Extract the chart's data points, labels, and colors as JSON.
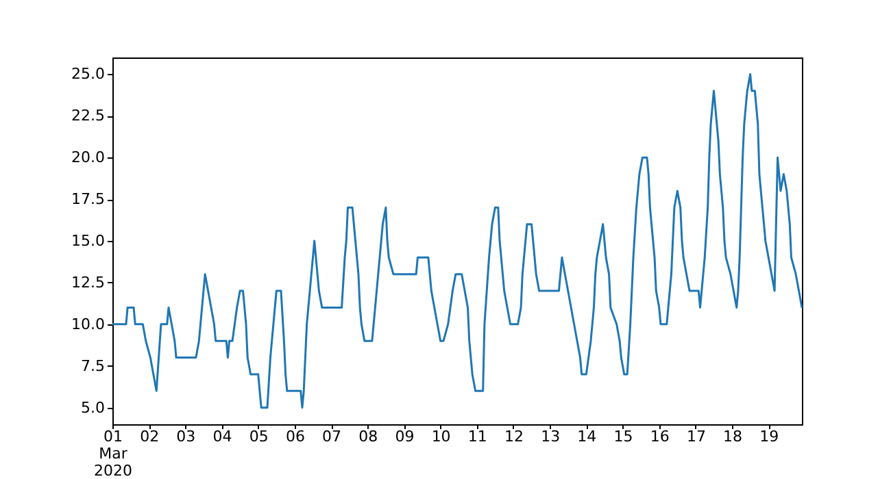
{
  "chart_data": {
    "type": "line",
    "grid": false,
    "marker": "none",
    "line_style": "solid",
    "xlim": [
      "2020-03-01T00:00",
      "2020-03-19T22:00"
    ],
    "xticks": [
      {
        "value": "2020-03-01T00:00",
        "label": "01\nMar\n2020"
      },
      {
        "value": "2020-03-02T00:00",
        "label": "02"
      },
      {
        "value": "2020-03-03T00:00",
        "label": "03"
      },
      {
        "value": "2020-03-04T00:00",
        "label": "04"
      },
      {
        "value": "2020-03-05T00:00",
        "label": "05"
      },
      {
        "value": "2020-03-06T00:00",
        "label": "06"
      },
      {
        "value": "2020-03-07T00:00",
        "label": "07"
      },
      {
        "value": "2020-03-08T00:00",
        "label": "08"
      },
      {
        "value": "2020-03-09T00:00",
        "label": "09"
      },
      {
        "value": "2020-03-10T00:00",
        "label": "10"
      },
      {
        "value": "2020-03-11T00:00",
        "label": "11"
      },
      {
        "value": "2020-03-12T00:00",
        "label": "12"
      },
      {
        "value": "2020-03-13T00:00",
        "label": "13"
      },
      {
        "value": "2020-03-14T00:00",
        "label": "14"
      },
      {
        "value": "2020-03-15T00:00",
        "label": "15"
      },
      {
        "value": "2020-03-16T00:00",
        "label": "16"
      },
      {
        "value": "2020-03-17T00:00",
        "label": "17"
      },
      {
        "value": "2020-03-18T00:00",
        "label": "18"
      },
      {
        "value": "2020-03-19T00:00",
        "label": "19"
      }
    ],
    "ylim": [
      4,
      26
    ],
    "yticks": [
      {
        "value": 5,
        "label": "5.0"
      },
      {
        "value": 7.5,
        "label": "7.5"
      },
      {
        "value": 10,
        "label": "10.0"
      },
      {
        "value": 12.5,
        "label": "12.5"
      },
      {
        "value": 15,
        "label": "15.0"
      },
      {
        "value": 17.5,
        "label": "17.5"
      },
      {
        "value": 20,
        "label": "20.0"
      },
      {
        "value": 22.5,
        "label": "22.5"
      },
      {
        "value": 25,
        "label": "25.0"
      }
    ],
    "x": [
      "2020-03-01T00:00",
      "2020-03-01T09:00",
      "2020-03-01T10:00",
      "2020-03-01T14:00",
      "2020-03-01T15:00",
      "2020-03-01T20:00",
      "2020-03-01T22:00",
      "2020-03-02T01:00",
      "2020-03-02T03:00",
      "2020-03-02T05:00",
      "2020-03-02T08:00",
      "2020-03-02T12:00",
      "2020-03-02T13:00",
      "2020-03-02T15:00",
      "2020-03-02T17:00",
      "2020-03-02T18:00",
      "2020-03-03T07:00",
      "2020-03-03T09:00",
      "2020-03-03T11:00",
      "2020-03-03T13:00",
      "2020-03-03T15:00",
      "2020-03-03T17:00",
      "2020-03-03T19:00",
      "2020-03-03T20:00",
      "2020-03-04T03:00",
      "2020-03-04T04:00",
      "2020-03-04T05:00",
      "2020-03-04T07:00",
      "2020-03-04T10:00",
      "2020-03-04T12:00",
      "2020-03-04T14:00",
      "2020-03-04T16:00",
      "2020-03-04T17:00",
      "2020-03-04T19:00",
      "2020-03-05T00:00",
      "2020-03-05T01:00",
      "2020-03-05T02:00",
      "2020-03-05T06:00",
      "2020-03-05T08:00",
      "2020-03-05T10:00",
      "2020-03-05T11:00",
      "2020-03-05T12:00",
      "2020-03-05T15:00",
      "2020-03-05T17:00",
      "2020-03-05T18:00",
      "2020-03-05T19:00",
      "2020-03-06T04:00",
      "2020-03-06T05:00",
      "2020-03-06T06:00",
      "2020-03-06T07:00",
      "2020-03-06T08:00",
      "2020-03-06T10:00",
      "2020-03-06T12:00",
      "2020-03-06T13:00",
      "2020-03-06T14:00",
      "2020-03-06T15:00",
      "2020-03-06T16:00",
      "2020-03-06T18:00",
      "2020-03-07T07:00",
      "2020-03-07T09:00",
      "2020-03-07T10:00",
      "2020-03-07T11:00",
      "2020-03-07T14:00",
      "2020-03-07T16:00",
      "2020-03-07T18:00",
      "2020-03-07T19:00",
      "2020-03-07T20:00",
      "2020-03-07T22:00",
      "2020-03-08T03:00",
      "2020-03-08T04:00",
      "2020-03-08T06:00",
      "2020-03-08T08:00",
      "2020-03-08T10:00",
      "2020-03-08T12:00",
      "2020-03-08T13:00",
      "2020-03-08T14:00",
      "2020-03-08T17:00",
      "2020-03-09T08:00",
      "2020-03-09T09:00",
      "2020-03-09T16:00",
      "2020-03-09T17:00",
      "2020-03-09T18:00",
      "2020-03-09T20:00",
      "2020-03-09T22:00",
      "2020-03-10T00:00",
      "2020-03-10T02:00",
      "2020-03-10T05:00",
      "2020-03-10T08:00",
      "2020-03-10T10:00",
      "2020-03-10T14:00",
      "2020-03-10T16:00",
      "2020-03-10T18:00",
      "2020-03-10T19:00",
      "2020-03-10T21:00",
      "2020-03-10T23:00",
      "2020-03-11T04:00",
      "2020-03-11T05:00",
      "2020-03-11T08:00",
      "2020-03-11T10:00",
      "2020-03-11T12:00",
      "2020-03-11T14:00",
      "2020-03-11T15:00",
      "2020-03-11T17:00",
      "2020-03-11T18:00",
      "2020-03-11T20:00",
      "2020-03-11T22:00",
      "2020-03-12T03:00",
      "2020-03-12T05:00",
      "2020-03-12T06:00",
      "2020-03-12T08:00",
      "2020-03-12T09:00",
      "2020-03-12T12:00",
      "2020-03-12T13:00",
      "2020-03-12T15:00",
      "2020-03-12T17:00",
      "2020-03-13T06:00",
      "2020-03-13T07:00",
      "2020-03-13T08:00",
      "2020-03-13T10:00",
      "2020-03-13T12:00",
      "2020-03-13T14:00",
      "2020-03-13T16:00",
      "2020-03-13T18:00",
      "2020-03-13T20:00",
      "2020-03-13T21:00",
      "2020-03-14T00:00",
      "2020-03-14T03:00",
      "2020-03-14T05:00",
      "2020-03-14T06:00",
      "2020-03-14T07:00",
      "2020-03-14T09:00",
      "2020-03-14T11:00",
      "2020-03-14T13:00",
      "2020-03-14T15:00",
      "2020-03-14T16:00",
      "2020-03-14T20:00",
      "2020-03-14T22:00",
      "2020-03-14T23:00",
      "2020-03-15T01:00",
      "2020-03-15T03:00",
      "2020-03-15T05:00",
      "2020-03-15T07:00",
      "2020-03-15T09:00",
      "2020-03-15T10:00",
      "2020-03-15T11:00",
      "2020-03-15T13:00",
      "2020-03-15T16:00",
      "2020-03-15T17:00",
      "2020-03-15T18:00",
      "2020-03-15T20:00",
      "2020-03-15T21:00",
      "2020-03-15T22:00",
      "2020-03-16T00:00",
      "2020-03-16T01:00",
      "2020-03-16T05:00",
      "2020-03-16T06:00",
      "2020-03-16T08:00",
      "2020-03-16T09:00",
      "2020-03-16T10:00",
      "2020-03-16T12:00",
      "2020-03-16T14:00",
      "2020-03-16T15:00",
      "2020-03-16T16:00",
      "2020-03-16T18:00",
      "2020-03-16T20:00",
      "2020-03-17T02:00",
      "2020-03-17T03:00",
      "2020-03-17T04:00",
      "2020-03-17T06:00",
      "2020-03-17T08:00",
      "2020-03-17T09:00",
      "2020-03-17T10:00",
      "2020-03-17T11:00",
      "2020-03-17T12:00",
      "2020-03-17T13:00",
      "2020-03-17T15:00",
      "2020-03-17T16:00",
      "2020-03-17T18:00",
      "2020-03-17T19:00",
      "2020-03-17T20:00",
      "2020-03-17T23:00",
      "2020-03-18T01:00",
      "2020-03-18T03:00",
      "2020-03-18T04:00",
      "2020-03-18T05:00",
      "2020-03-18T06:00",
      "2020-03-18T07:00",
      "2020-03-18T08:00",
      "2020-03-18T10:00",
      "2020-03-18T12:00",
      "2020-03-18T13:00",
      "2020-03-18T15:00",
      "2020-03-18T17:00",
      "2020-03-18T18:00",
      "2020-03-18T20:00",
      "2020-03-18T21:00",
      "2020-03-18T22:00",
      "2020-03-19T00:00",
      "2020-03-19T02:00",
      "2020-03-19T04:00",
      "2020-03-19T05:00",
      "2020-03-19T06:00",
      "2020-03-19T08:00",
      "2020-03-19T10:00",
      "2020-03-19T12:00",
      "2020-03-19T14:00",
      "2020-03-19T15:00",
      "2020-03-19T18:00",
      "2020-03-19T20:00",
      "2020-03-19T22:00"
    ],
    "series": [
      {
        "color": "#1f77b4",
        "values": [
          10,
          10,
          11,
          11,
          10,
          10,
          9,
          8,
          7,
          6,
          10,
          10,
          11,
          10,
          9,
          8,
          8,
          9,
          11,
          13,
          12,
          11,
          10,
          9,
          9,
          8,
          9,
          9,
          11,
          12,
          12,
          10,
          8,
          7,
          7,
          6,
          5,
          5,
          8,
          10,
          11,
          12,
          12,
          9,
          7,
          6,
          6,
          5,
          6,
          8,
          10,
          12,
          14,
          15,
          14,
          13,
          12,
          11,
          11,
          14,
          15,
          17,
          17,
          15,
          13,
          11,
          10,
          9,
          9,
          10,
          12,
          14,
          16,
          17,
          15,
          14,
          13,
          13,
          14,
          14,
          13,
          12,
          11,
          10,
          9,
          9,
          10,
          12,
          13,
          13,
          12,
          11,
          9,
          7,
          6,
          6,
          10,
          14,
          16,
          17,
          17,
          15,
          13,
          12,
          11,
          10,
          10,
          11,
          13,
          15,
          16,
          16,
          15,
          13,
          12,
          12,
          13,
          14,
          13,
          12,
          11,
          10,
          9,
          8,
          7,
          7,
          9,
          11,
          13,
          14,
          15,
          16,
          14,
          13,
          11,
          10,
          9,
          8,
          7,
          7,
          10,
          14,
          17,
          18,
          19,
          20,
          20,
          19,
          17,
          15,
          14,
          12,
          11,
          10,
          10,
          11,
          13,
          15,
          17,
          18,
          17,
          15,
          14,
          13,
          12,
          12,
          11,
          12,
          14,
          17,
          20,
          22,
          23,
          24,
          23,
          21,
          19,
          17,
          15,
          14,
          13,
          12,
          11,
          12,
          14,
          17,
          20,
          22,
          24,
          25,
          24,
          24,
          22,
          19,
          17,
          16,
          15,
          14,
          13,
          12,
          16,
          20,
          18,
          19,
          18,
          16,
          14,
          13,
          12,
          11
        ]
      }
    ]
  }
}
